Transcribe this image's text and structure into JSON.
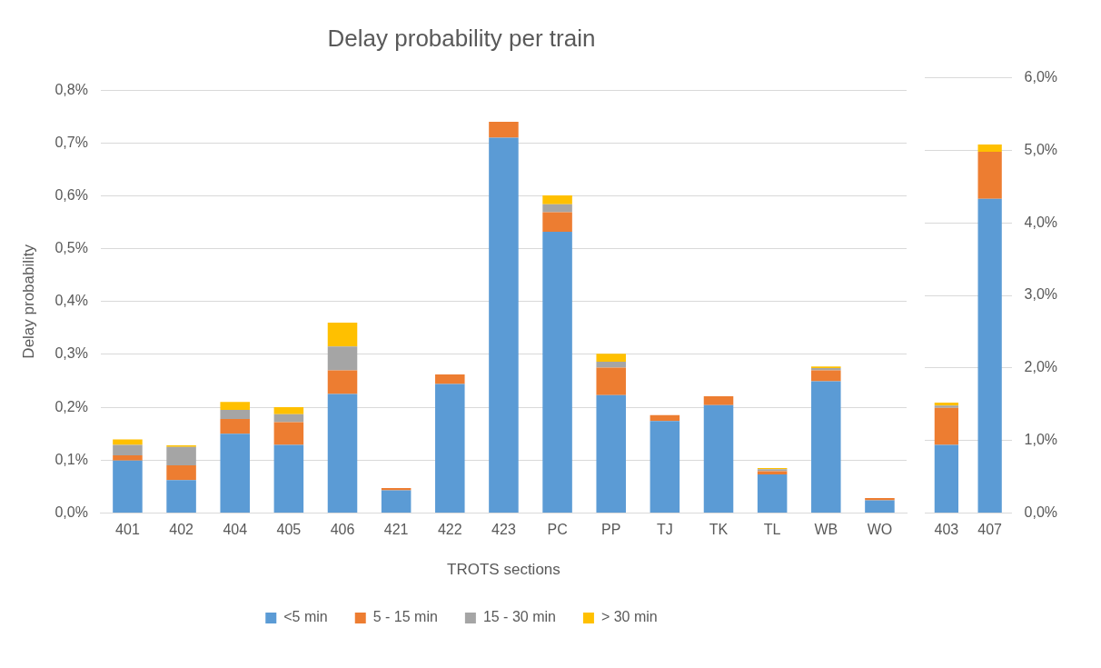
{
  "chart_data": [
    {
      "type": "bar",
      "title": "Delay probability per train",
      "xlabel": "TROTS sections",
      "ylabel": "Delay probability",
      "stacked": true,
      "grid": "y",
      "legend": "bottom",
      "categories": [
        "401",
        "402",
        "404",
        "405",
        "406",
        "421",
        "422",
        "423",
        "PC",
        "PP",
        "TJ",
        "TK",
        "TL",
        "WB",
        "WO"
      ],
      "ylim": [
        0,
        0.8
      ],
      "yticks": [
        {
          "value": 0,
          "label": "0,0%"
        },
        {
          "value": 0.1,
          "label": "0,1%"
        },
        {
          "value": 0.2,
          "label": "0,2%"
        },
        {
          "value": 0.3,
          "label": "0,3%"
        },
        {
          "value": 0.4,
          "label": "0,4%"
        },
        {
          "value": 0.5,
          "label": "0,5%"
        },
        {
          "value": 0.6,
          "label": "0,6%"
        },
        {
          "value": 0.7,
          "label": "0,7%"
        },
        {
          "value": 0.8,
          "label": "0,8%"
        }
      ],
      "series": [
        {
          "name": "<5 min",
          "color": "#5b9bd5",
          "values": [
            0.099,
            0.062,
            0.15,
            0.129,
            0.225,
            0.043,
            0.244,
            0.71,
            0.532,
            0.223,
            0.174,
            0.204,
            0.073,
            0.249,
            0.024
          ]
        },
        {
          "name": "5 - 15 min",
          "color": "#ed7d31",
          "values": [
            0.01,
            0.028,
            0.028,
            0.043,
            0.045,
            0.004,
            0.018,
            0.03,
            0.037,
            0.052,
            0.011,
            0.017,
            0.006,
            0.021,
            0.004
          ]
        },
        {
          "name": "15 - 30 min",
          "color": "#a5a5a5",
          "values": [
            0.02,
            0.035,
            0.017,
            0.015,
            0.045,
            null,
            null,
            null,
            0.015,
            0.011,
            null,
            null,
            0.004,
            0.004,
            null
          ]
        },
        {
          "name": "> 30 min",
          "color": "#ffc000",
          "values": [
            0.01,
            0.003,
            0.015,
            0.013,
            0.045,
            null,
            null,
            null,
            0.017,
            0.015,
            null,
            null,
            0.002,
            0.003,
            null
          ]
        }
      ]
    },
    {
      "type": "bar",
      "stacked": true,
      "grid": "y",
      "categories": [
        "403",
        "407"
      ],
      "y2lim": [
        0,
        6
      ],
      "y2ticks": [
        {
          "value": 0,
          "label": "0,0%"
        },
        {
          "value": 1,
          "label": "1,0%"
        },
        {
          "value": 2,
          "label": "2,0%"
        },
        {
          "value": 3,
          "label": "3,0%"
        },
        {
          "value": 4,
          "label": "4,0%"
        },
        {
          "value": 5,
          "label": "5,0%"
        },
        {
          "value": 6,
          "label": "6,0%"
        }
      ],
      "series": [
        {
          "color": "#5b9bd5",
          "axis": "y2",
          "values": [
            0.94,
            4.33
          ]
        },
        {
          "color": "#ed7d31",
          "axis": "y2",
          "values": [
            0.51,
            0.65
          ]
        },
        {
          "color": "#a5a5a5",
          "axis": "y2",
          "values": [
            0.03,
            null
          ]
        },
        {
          "color": "#ffc000",
          "axis": "y2",
          "values": [
            0.04,
            0.1
          ]
        }
      ]
    }
  ]
}
